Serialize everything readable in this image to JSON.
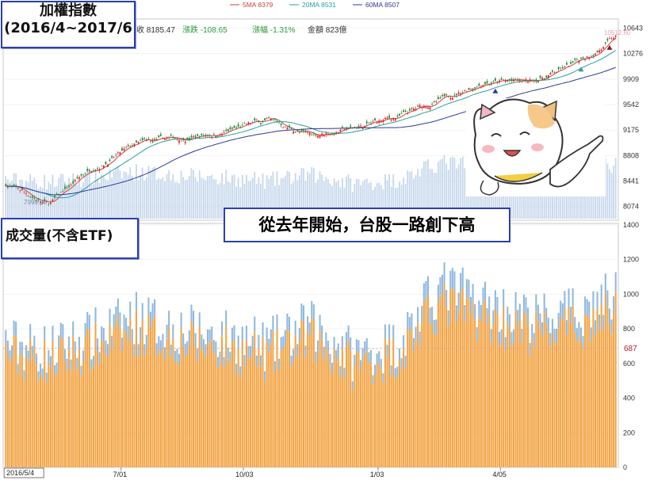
{
  "chart_data": [
    {
      "type": "candlestick",
      "title": "加權指數",
      "subtitle": "(2016/4~2017/6",
      "legend": [
        {
          "name": "5MA 8379",
          "color": "#d04040"
        },
        {
          "name": "20MA 8531",
          "color": "#2aa0a0"
        },
        {
          "name": "60MA 8507",
          "color": "#2b3a9a"
        }
      ],
      "info": {
        "close": "收 8185.47",
        "change": "漲跌 -108.65",
        "pct": "漲幅 -1.31%",
        "amount": "金額 823億"
      },
      "ylim": [
        7900,
        10750
      ],
      "yticks": [
        10643,
        10276,
        9909,
        9542,
        9175,
        8808,
        8441,
        8074
      ],
      "low_label": "7999.90",
      "high_label": "10512.60",
      "caption": "從去年開始，台股一路創下高",
      "approx_series": {
        "months": [
          "2016-04",
          "2016-05",
          "2016-06",
          "2016-07",
          "2016-08",
          "2016-09",
          "2016-10",
          "2016-11",
          "2016-12",
          "2017-01",
          "2017-02",
          "2017-03",
          "2017-04",
          "2017-05",
          "2017-06"
        ],
        "close": [
          8400,
          8100,
          8650,
          8950,
          9050,
          9150,
          9300,
          9100,
          9200,
          9350,
          9600,
          9900,
          9850,
          10100,
          10500
        ]
      }
    },
    {
      "type": "bar",
      "title": "成交量(不含ETF)",
      "unit": "億",
      "ylim": [
        0,
        1400
      ],
      "yticks": [
        0,
        200,
        400,
        600,
        800,
        1000,
        1200,
        1400
      ],
      "reference_value": 687,
      "series": [
        {
          "color": "#f2a444"
        },
        {
          "color": "#8fb8e0"
        }
      ],
      "x_ticks": [
        "2016/5/4",
        "7/01",
        "10/03",
        "1/03",
        "4/05"
      ],
      "approx_avg_volume_by_month": {
        "months": [
          "2016-04",
          "2016-05",
          "2016-06",
          "2016-07",
          "2016-08",
          "2016-09",
          "2016-10",
          "2016-11",
          "2016-12",
          "2017-01",
          "2017-02",
          "2017-03",
          "2017-04",
          "2017-05",
          "2017-06"
        ],
        "values": [
          720,
          680,
          760,
          870,
          800,
          760,
          700,
          820,
          650,
          720,
          1050,
          950,
          860,
          880,
          1000
        ]
      }
    }
  ]
}
